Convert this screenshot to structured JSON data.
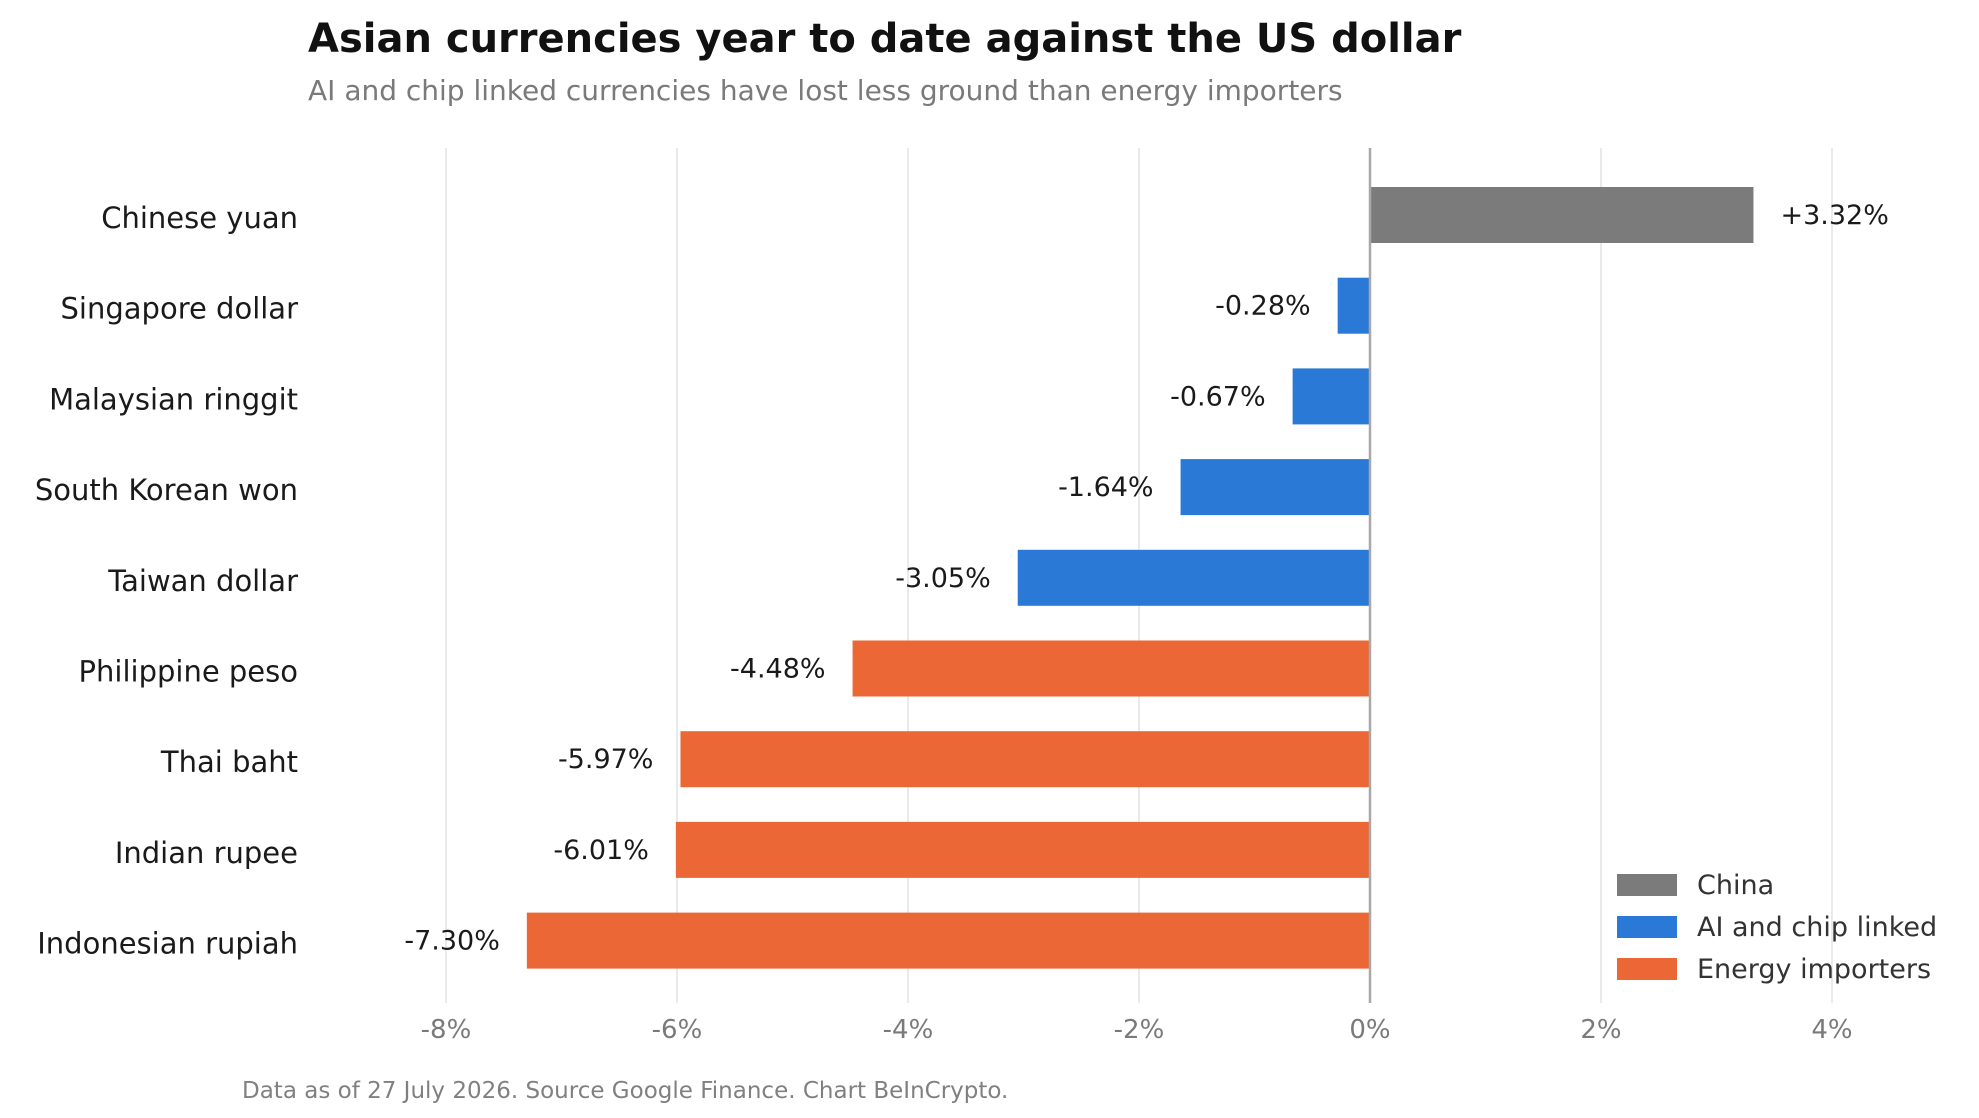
{
  "chart_data": {
    "type": "bar",
    "orientation": "horizontal",
    "title": "Asian currencies year to date against the US dollar",
    "subtitle": "AI and chip linked currencies have lost less ground than energy importers",
    "categories": [
      "Chinese yuan",
      "Singapore dollar",
      "Malaysian ringgit",
      "South Korean won",
      "Taiwan dollar",
      "Philippine peso",
      "Thai baht",
      "Indian rupee",
      "Indonesian rupiah"
    ],
    "values": [
      3.32,
      -0.28,
      -0.67,
      -1.64,
      -3.05,
      -4.48,
      -5.97,
      -6.01,
      -7.3
    ],
    "value_labels": [
      "+3.32%",
      "-0.28%",
      "-0.67%",
      "-1.64%",
      "-3.05%",
      "-4.48%",
      "-5.97%",
      "-6.01%",
      "-7.30%"
    ],
    "groups": [
      "China",
      "AI and chip linked",
      "AI and chip linked",
      "AI and chip linked",
      "AI and chip linked",
      "Energy importers",
      "Energy importers",
      "Energy importers",
      "Energy importers"
    ],
    "legend": [
      {
        "name": "China",
        "color": "#7b7b7b"
      },
      {
        "name": "AI and chip linked",
        "color": "#2b79d6"
      },
      {
        "name": "Energy importers",
        "color": "#eb6836"
      }
    ],
    "legend_position": "bottom-right",
    "xlim": [
      -9,
      5
    ],
    "xticks": [
      -8,
      -6,
      -4,
      -2,
      0,
      2,
      4
    ],
    "xtick_labels": [
      "-8%",
      "-6%",
      "-4%",
      "-2%",
      "0%",
      "2%",
      "4%"
    ],
    "grid": "vertical",
    "xlabel": "",
    "ylabel": "",
    "footer": "Data as of 27 July 2026. Source Google Finance. Chart BeInCrypto."
  }
}
